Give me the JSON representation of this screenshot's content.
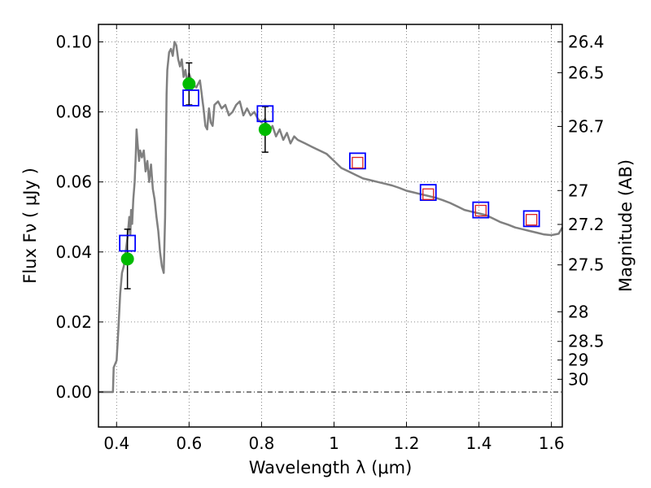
{
  "chart_data": {
    "type": "line",
    "xlabel": "Wavelength  λ (μm)",
    "ylabel": "Flux  Fν  ( μJy )",
    "y2label": "Magnitude (AB)",
    "xlim": [
      0.35,
      1.63
    ],
    "ylim": [
      -0.01,
      0.105
    ],
    "grid": true,
    "x_ticks": [
      0.4,
      0.6,
      0.8,
      1.0,
      1.2,
      1.4,
      1.6
    ],
    "x_tick_labels": [
      "0.4",
      "0.6",
      "0.8",
      "1",
      "1.2",
      "1.4",
      "1.6"
    ],
    "y_ticks": [
      0.0,
      0.02,
      0.04,
      0.06,
      0.08,
      0.1
    ],
    "y_tick_labels": [
      "0.00",
      "0.02",
      "0.04",
      "0.06",
      "0.08",
      "0.10"
    ],
    "mag_ticks": [
      26.4,
      26.5,
      26.7,
      27,
      27.2,
      27.5,
      28,
      28.5,
      29,
      30
    ],
    "mag_tick_labels": [
      "26.4",
      "26.5",
      "26.7",
      "27",
      "27.2",
      "27.5",
      "28",
      "28.5",
      "29",
      "30"
    ],
    "series": [
      {
        "style": "line",
        "color": "#808080",
        "x": [
          0.35,
          0.38,
          0.39,
          0.392,
          0.4,
          0.405,
          0.41,
          0.415,
          0.42,
          0.425,
          0.43,
          0.435,
          0.438,
          0.44,
          0.443,
          0.446,
          0.45,
          0.453,
          0.455,
          0.458,
          0.462,
          0.465,
          0.47,
          0.475,
          0.48,
          0.485,
          0.49,
          0.495,
          0.5,
          0.505,
          0.51,
          0.515,
          0.52,
          0.525,
          0.53,
          0.534,
          0.538,
          0.54,
          0.545,
          0.55,
          0.555,
          0.56,
          0.565,
          0.57,
          0.575,
          0.58,
          0.585,
          0.59,
          0.595,
          0.6,
          0.61,
          0.62,
          0.63,
          0.64,
          0.645,
          0.65,
          0.655,
          0.66,
          0.665,
          0.67,
          0.68,
          0.69,
          0.7,
          0.71,
          0.72,
          0.73,
          0.74,
          0.75,
          0.76,
          0.77,
          0.78,
          0.79,
          0.8,
          0.81,
          0.82,
          0.83,
          0.84,
          0.85,
          0.86,
          0.87,
          0.88,
          0.89,
          0.9,
          0.92,
          0.94,
          0.96,
          0.98,
          1.0,
          1.02,
          1.04,
          1.06,
          1.08,
          1.1,
          1.12,
          1.14,
          1.16,
          1.18,
          1.2,
          1.22,
          1.24,
          1.26,
          1.28,
          1.3,
          1.32,
          1.34,
          1.36,
          1.38,
          1.4,
          1.42,
          1.44,
          1.46,
          1.48,
          1.5,
          1.52,
          1.54,
          1.56,
          1.58,
          1.6,
          1.62,
          1.63
        ],
        "y": [
          0.0,
          0.0,
          0.0,
          0.007,
          0.009,
          0.018,
          0.028,
          0.034,
          0.036,
          0.04,
          0.044,
          0.05,
          0.045,
          0.052,
          0.048,
          0.055,
          0.06,
          0.068,
          0.075,
          0.071,
          0.066,
          0.069,
          0.067,
          0.069,
          0.063,
          0.066,
          0.06,
          0.065,
          0.058,
          0.055,
          0.05,
          0.046,
          0.04,
          0.036,
          0.034,
          0.05,
          0.085,
          0.092,
          0.097,
          0.098,
          0.096,
          0.1,
          0.099,
          0.095,
          0.093,
          0.095,
          0.09,
          0.092,
          0.088,
          0.091,
          0.088,
          0.087,
          0.089,
          0.081,
          0.076,
          0.075,
          0.081,
          0.077,
          0.076,
          0.082,
          0.083,
          0.081,
          0.082,
          0.079,
          0.08,
          0.082,
          0.083,
          0.079,
          0.081,
          0.079,
          0.08,
          0.078,
          0.077,
          0.078,
          0.074,
          0.076,
          0.073,
          0.075,
          0.072,
          0.074,
          0.071,
          0.073,
          0.072,
          0.071,
          0.07,
          0.069,
          0.068,
          0.066,
          0.064,
          0.063,
          0.062,
          0.061,
          0.0605,
          0.06,
          0.0595,
          0.059,
          0.0583,
          0.0575,
          0.057,
          0.0565,
          0.056,
          0.0555,
          0.0548,
          0.054,
          0.053,
          0.052,
          0.0515,
          0.051,
          0.0505,
          0.0495,
          0.0485,
          0.0478,
          0.047,
          0.0465,
          0.046,
          0.0455,
          0.045,
          0.0448,
          0.0452,
          0.047
        ]
      },
      {
        "style": "errorbar-points",
        "color": "#00bb00",
        "x": [
          0.43,
          0.6,
          0.81
        ],
        "y": [
          0.038,
          0.088,
          0.075
        ],
        "yerr": [
          0.0085,
          0.006,
          0.0065
        ]
      },
      {
        "style": "squares",
        "color": "#0000ff",
        "x": [
          0.43,
          0.605,
          0.81,
          1.065,
          1.26,
          1.405,
          1.545
        ],
        "y": [
          0.0425,
          0.084,
          0.0795,
          0.066,
          0.057,
          0.052,
          0.0495
        ]
      },
      {
        "style": "squares",
        "color": "#dd2222",
        "x": [
          1.065,
          1.26,
          1.405,
          1.545
        ],
        "y": [
          0.0655,
          0.0565,
          0.0518,
          0.0492
        ]
      }
    ]
  }
}
